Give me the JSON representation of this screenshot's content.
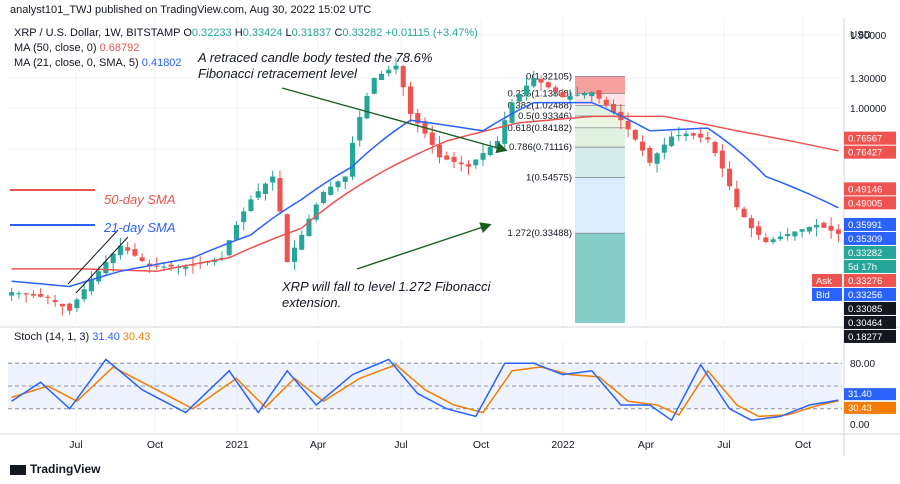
{
  "header": {
    "text": "analyst101_TWJ published on TradingView.com, Aug 30, 2022 15:02 UTC"
  },
  "legend": {
    "symbol": "XRP / U.S. Dollar, 1W, BITSTAMP",
    "open_label": "O",
    "open": "0.32233",
    "high_label": "H",
    "high": "0.33424",
    "low_label": "L",
    "low": "0.31837",
    "close_label": "C",
    "close": "0.33282",
    "change": "+0.01115 (+3.47%)",
    "ma50_label": "MA (50, close, 0)",
    "ma50_value": "0.68792",
    "ma21_label": "MA (21, close, 0, SMA, 5)",
    "ma21_value": "0.41802"
  },
  "annotations": {
    "retrace_line1": "A retraced candle body tested the 78.6%",
    "retrace_line2": "Fibonacci retracement level",
    "sma50": "50-day SMA",
    "sma21": "21-day SMA",
    "fall_line1": "XRP will fall to level 1.272 Fibonacci",
    "fall_line2": "extension."
  },
  "fib_labels": [
    "0(1.32105)",
    "0.236(1.13808)",
    "0.382(1.02488)",
    "0.5(0.93346)",
    "0.618(0.84182)",
    "0.786(0.71116)",
    "1(0.54575)",
    "1.272(0.33488)"
  ],
  "price_axis": {
    "currency": "USD",
    "ticks": [
      "1.90000",
      "1.30000",
      "1.00000",
      "0.70000"
    ]
  },
  "price_tags": [
    {
      "text": "0.76567",
      "color": "#ef5350",
      "price": 0.76567
    },
    {
      "text": "0.76427",
      "color": "#ef5350",
      "price": 0.76427
    },
    {
      "text": "0.49146",
      "color": "#ef5350",
      "price": 0.49146
    },
    {
      "text": "0.49005",
      "color": "#ef5350",
      "price": 0.49005
    },
    {
      "text": "0.35991",
      "color": "#2962ff",
      "price": 0.35991
    },
    {
      "text": "0.35309",
      "color": "#2962ff",
      "price": 0.35309
    },
    {
      "text": "0.33282",
      "color": "#26a69a",
      "price": 0.33282
    },
    {
      "text": "5d 17h",
      "color": "#26a69a",
      "price": 0.325
    },
    {
      "text": "0.33276",
      "color": "#ef5350",
      "price": 0.3265,
      "prefix": "Ask"
    },
    {
      "text": "0.33256",
      "color": "#2962ff",
      "price": 0.3232,
      "prefix": "Bid"
    },
    {
      "text": "0.33085",
      "color": "#131722",
      "price": 0.3195
    },
    {
      "text": "0.30464",
      "color": "#131722",
      "price": 0.312
    },
    {
      "text": "0.18277",
      "color": "#131722",
      "price": 0.305
    }
  ],
  "stoch": {
    "label": "Stoch (14, 1, 3)",
    "k_value": "31.40",
    "d_value": "30.43",
    "ticks": [
      "80.00",
      "40.00",
      "0.00"
    ]
  },
  "time_axis": [
    "Jul",
    "Oct",
    "2021",
    "Apr",
    "Jul",
    "Oct",
    "2022",
    "Apr",
    "Jul",
    "Oct"
  ],
  "footer": {
    "brand": "TradingView"
  },
  "colors": {
    "up": "#26a69a",
    "down": "#ef5350",
    "ma50": "#ef5350",
    "ma21": "#2962ff",
    "stoch_k": "#2962ff",
    "stoch_d": "#f57c00"
  },
  "chart_data": {
    "type": "candlestick",
    "title": "XRP / U.S. Dollar, 1W, BITSTAMP",
    "y_scale": "log",
    "ylim": [
      0.15,
      2.2
    ],
    "x_labels": [
      "Jul",
      "Oct",
      "2021",
      "Apr",
      "Jul",
      "Oct",
      "2022",
      "Apr",
      "Jul",
      "Oct"
    ],
    "anchors": [
      {
        "i": 0,
        "p": 0.2
      },
      {
        "i": 5,
        "p": 0.19
      },
      {
        "i": 8,
        "p": 0.17
      },
      {
        "i": 12,
        "p": 0.24
      },
      {
        "i": 15,
        "p": 0.3
      },
      {
        "i": 19,
        "p": 0.25
      },
      {
        "i": 24,
        "p": 0.25
      },
      {
        "i": 29,
        "p": 0.27
      },
      {
        "i": 33,
        "p": 0.45
      },
      {
        "i": 36,
        "p": 0.55
      },
      {
        "i": 38,
        "p": 0.26
      },
      {
        "i": 40,
        "p": 0.33
      },
      {
        "i": 43,
        "p": 0.48
      },
      {
        "i": 46,
        "p": 0.55
      },
      {
        "i": 50,
        "p": 1.3
      },
      {
        "i": 53,
        "p": 1.45
      },
      {
        "i": 55,
        "p": 0.95
      },
      {
        "i": 59,
        "p": 0.65
      },
      {
        "i": 63,
        "p": 0.6
      },
      {
        "i": 67,
        "p": 0.75
      },
      {
        "i": 69,
        "p": 1.05
      },
      {
        "i": 72,
        "p": 1.3
      },
      {
        "i": 76,
        "p": 1.1
      },
      {
        "i": 80,
        "p": 1.15
      },
      {
        "i": 84,
        "p": 0.9
      },
      {
        "i": 88,
        "p": 0.62
      },
      {
        "i": 91,
        "p": 0.78
      },
      {
        "i": 93,
        "p": 0.8
      },
      {
        "i": 96,
        "p": 0.76
      },
      {
        "i": 100,
        "p": 0.42
      },
      {
        "i": 102,
        "p": 0.35
      },
      {
        "i": 104,
        "p": 0.31
      },
      {
        "i": 108,
        "p": 0.34
      },
      {
        "i": 111,
        "p": 0.36
      },
      {
        "i": 114,
        "p": 0.333
      }
    ],
    "ma50": [
      {
        "i": 0,
        "p": 0.245
      },
      {
        "i": 10,
        "p": 0.245
      },
      {
        "i": 20,
        "p": 0.24
      },
      {
        "i": 30,
        "p": 0.27
      },
      {
        "i": 40,
        "p": 0.35
      },
      {
        "i": 50,
        "p": 0.55
      },
      {
        "i": 60,
        "p": 0.75
      },
      {
        "i": 70,
        "p": 0.88
      },
      {
        "i": 80,
        "p": 0.93
      },
      {
        "i": 90,
        "p": 0.93
      },
      {
        "i": 100,
        "p": 0.82
      },
      {
        "i": 114,
        "p": 0.688
      }
    ],
    "ma21": [
      {
        "i": 0,
        "p": 0.22
      },
      {
        "i": 8,
        "p": 0.21
      },
      {
        "i": 15,
        "p": 0.24
      },
      {
        "i": 25,
        "p": 0.27
      },
      {
        "i": 33,
        "p": 0.33
      },
      {
        "i": 40,
        "p": 0.45
      },
      {
        "i": 47,
        "p": 0.6
      },
      {
        "i": 55,
        "p": 0.9
      },
      {
        "i": 65,
        "p": 0.82
      },
      {
        "i": 72,
        "p": 1.05
      },
      {
        "i": 80,
        "p": 1.05
      },
      {
        "i": 88,
        "p": 0.82
      },
      {
        "i": 96,
        "p": 0.84
      },
      {
        "i": 104,
        "p": 0.55
      },
      {
        "i": 114,
        "p": 0.418
      }
    ],
    "stoch_k": [
      {
        "i": 0,
        "v": 30
      },
      {
        "i": 4,
        "v": 55
      },
      {
        "i": 8,
        "v": 20
      },
      {
        "i": 13,
        "v": 85
      },
      {
        "i": 18,
        "v": 45
      },
      {
        "i": 24,
        "v": 15
      },
      {
        "i": 30,
        "v": 70
      },
      {
        "i": 34,
        "v": 15
      },
      {
        "i": 38,
        "v": 70
      },
      {
        "i": 42,
        "v": 25
      },
      {
        "i": 47,
        "v": 65
      },
      {
        "i": 52,
        "v": 85
      },
      {
        "i": 56,
        "v": 40
      },
      {
        "i": 60,
        "v": 20
      },
      {
        "i": 64,
        "v": 10
      },
      {
        "i": 68,
        "v": 80
      },
      {
        "i": 72,
        "v": 80
      },
      {
        "i": 76,
        "v": 65
      },
      {
        "i": 80,
        "v": 70
      },
      {
        "i": 84,
        "v": 25
      },
      {
        "i": 88,
        "v": 25
      },
      {
        "i": 91,
        "v": 5
      },
      {
        "i": 95,
        "v": 78
      },
      {
        "i": 99,
        "v": 20
      },
      {
        "i": 102,
        "v": 5
      },
      {
        "i": 106,
        "v": 10
      },
      {
        "i": 110,
        "v": 25
      },
      {
        "i": 114,
        "v": 31.4
      }
    ],
    "stoch_d": [
      {
        "i": 0,
        "v": 35
      },
      {
        "i": 5,
        "v": 50
      },
      {
        "i": 9,
        "v": 30
      },
      {
        "i": 14,
        "v": 75
      },
      {
        "i": 19,
        "v": 50
      },
      {
        "i": 25,
        "v": 20
      },
      {
        "i": 31,
        "v": 60
      },
      {
        "i": 35,
        "v": 22
      },
      {
        "i": 39,
        "v": 60
      },
      {
        "i": 43,
        "v": 30
      },
      {
        "i": 48,
        "v": 60
      },
      {
        "i": 53,
        "v": 78
      },
      {
        "i": 57,
        "v": 45
      },
      {
        "i": 61,
        "v": 25
      },
      {
        "i": 65,
        "v": 15
      },
      {
        "i": 69,
        "v": 70
      },
      {
        "i": 73,
        "v": 75
      },
      {
        "i": 77,
        "v": 65
      },
      {
        "i": 81,
        "v": 62
      },
      {
        "i": 85,
        "v": 30
      },
      {
        "i": 89,
        "v": 25
      },
      {
        "i": 92,
        "v": 12
      },
      {
        "i": 96,
        "v": 70
      },
      {
        "i": 100,
        "v": 25
      },
      {
        "i": 103,
        "v": 10
      },
      {
        "i": 107,
        "v": 12
      },
      {
        "i": 111,
        "v": 24
      },
      {
        "i": 114,
        "v": 30.43
      }
    ],
    "fib_levels": [
      1.32105,
      1.13808,
      1.02488,
      0.93346,
      0.84182,
      0.71116,
      0.54575,
      0.33488
    ]
  }
}
